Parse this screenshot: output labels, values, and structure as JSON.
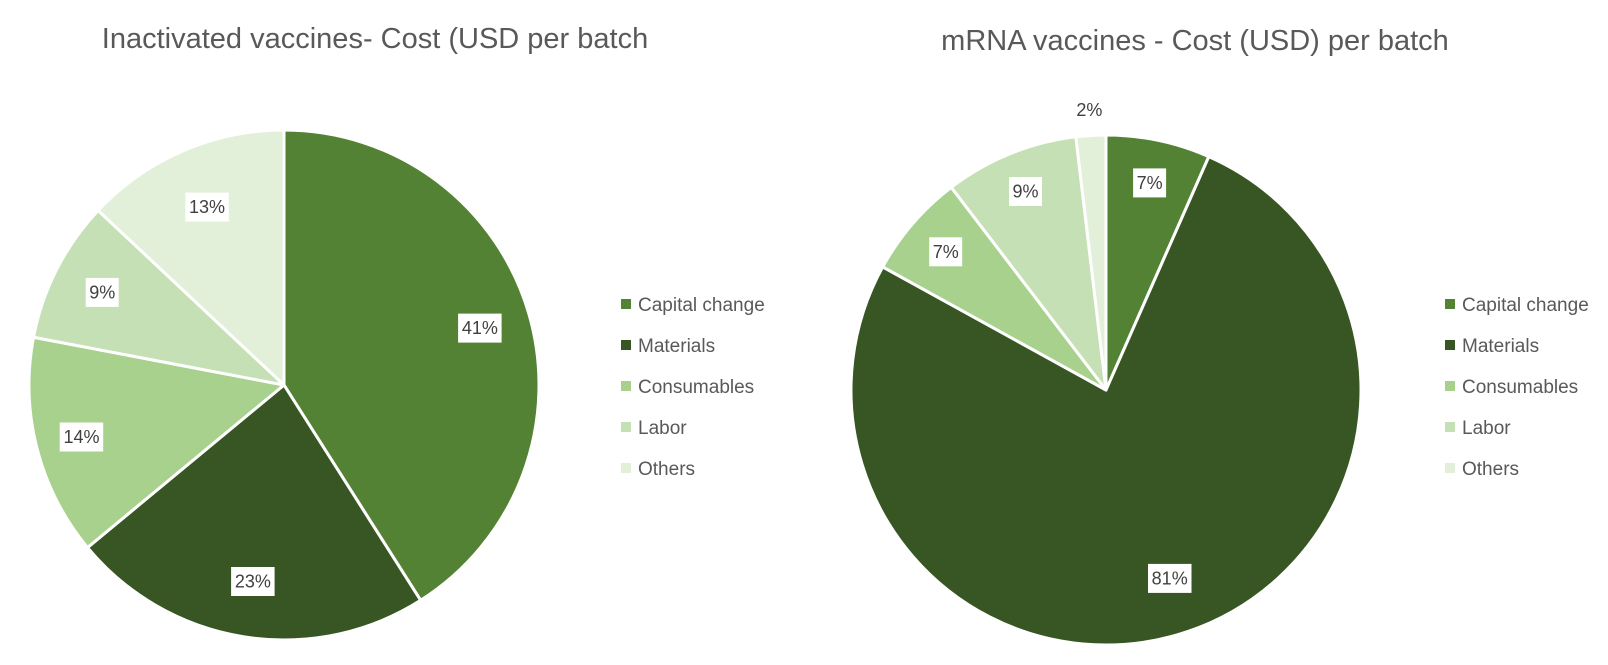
{
  "chart_data": [
    {
      "type": "pie",
      "title": "Inactivated vaccines- Cost (USD per batch",
      "categories": [
        "Capital change",
        "Materials",
        "Consumables",
        "Labor",
        "Others"
      ],
      "values": [
        41,
        23,
        14,
        9,
        13
      ],
      "labels": [
        "41%",
        "23%",
        "14%",
        "9%",
        "13%"
      ],
      "colors": [
        "#548235",
        "#375623",
        "#a9d18e",
        "#c5e0b4",
        "#e2f0d9"
      ],
      "legend": "right"
    },
    {
      "type": "pie",
      "title": "mRNA vaccines - Cost (USD) per batch",
      "categories": [
        "Capital change",
        "Materials",
        "Consumables",
        "Labor",
        "Others"
      ],
      "values": [
        7,
        81,
        7,
        9,
        2
      ],
      "labels": [
        "7%",
        "81%",
        "7%",
        "9%",
        "2%"
      ],
      "colors": [
        "#548235",
        "#375623",
        "#a9d18e",
        "#c5e0b4",
        "#e2f0d9"
      ],
      "legend": "right"
    }
  ]
}
